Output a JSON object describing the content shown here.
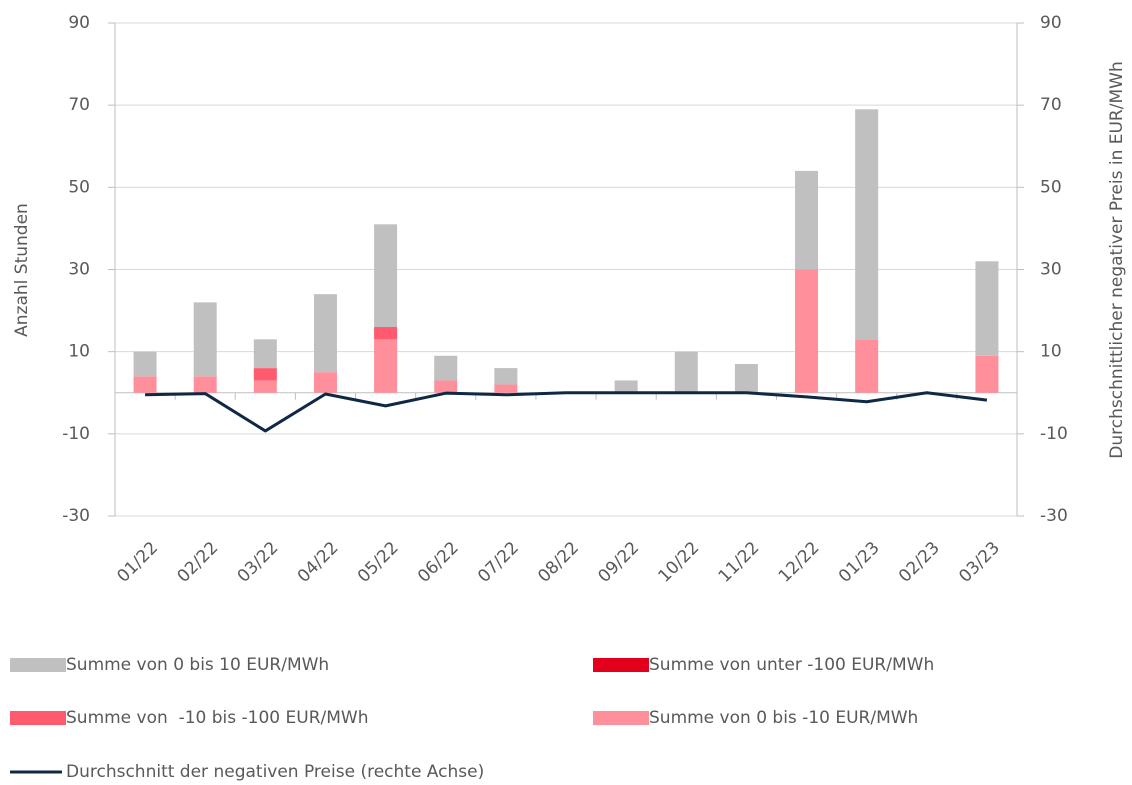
{
  "chart_data": {
    "type": "bar",
    "stacked": true,
    "ylabel": "Anzahl Stunden",
    "y2label": "Durchschnittlicher negativer Preis in EUR/MWh",
    "categories": [
      "01/22",
      "02/22",
      "03/22",
      "04/22",
      "05/22",
      "06/22",
      "07/22",
      "08/22",
      "09/22",
      "10/22",
      "11/22",
      "12/22",
      "01/23",
      "02/23",
      "03/23"
    ],
    "series": [
      {
        "name": "Summe von 0 bis -10 EUR/MWh",
        "color": "#ff8f9a",
        "type": "bar",
        "values": [
          4,
          4,
          3,
          5,
          13,
          3,
          2,
          0,
          0,
          0,
          0,
          30,
          13,
          0,
          9
        ]
      },
      {
        "name": "Summe von  -10 bis -100 EUR/MWh",
        "color": "#ff5a6e",
        "type": "bar",
        "values": [
          0,
          0,
          3,
          0,
          3,
          0,
          0,
          0,
          0,
          0,
          0,
          0,
          0,
          0,
          0
        ]
      },
      {
        "name": "Summe von unter -100 EUR/MWh",
        "color": "#e2001a",
        "type": "bar",
        "values": [
          0,
          0,
          0,
          0,
          0,
          0,
          0,
          0,
          0,
          0,
          0,
          0,
          0,
          0,
          0
        ]
      },
      {
        "name": "Summe von 0 bis 10 EUR/MWh",
        "color": "#c0c0c0",
        "type": "bar",
        "values": [
          6,
          18,
          7,
          19,
          25,
          6,
          4,
          0,
          3,
          10,
          7,
          24,
          56,
          0,
          23
        ]
      },
      {
        "name": "Durchschnitt der negativen Preise (rechte Achse)",
        "color": "#0f2846",
        "type": "line",
        "axis": "y2",
        "values": [
          -0.5,
          -0.2,
          -9.3,
          -0.3,
          -3.2,
          -0.1,
          -0.5,
          0,
          0,
          0,
          0,
          -1.0,
          -2.2,
          0,
          -1.8
        ]
      }
    ],
    "ylim": [
      -30,
      90
    ],
    "yticks": [
      -30,
      -10,
      10,
      30,
      50,
      70,
      90
    ],
    "y2lim": [
      -30,
      90
    ],
    "y2ticks": [
      -30,
      -10,
      10,
      30,
      50,
      70,
      90
    ],
    "grid": true
  }
}
